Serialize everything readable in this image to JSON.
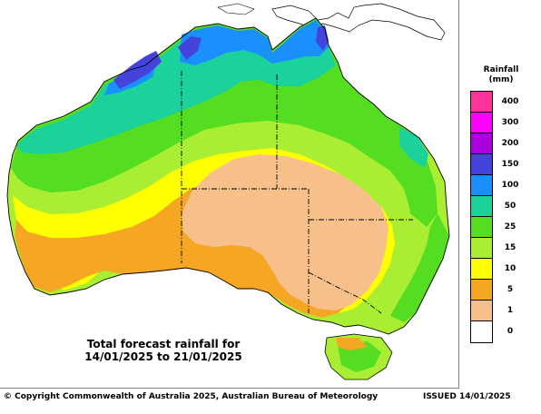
{
  "map": {
    "title_line1": "Total forecast rainfall for",
    "title_line2": "14/01/2025 to 21/01/2025",
    "background_sea": "#ffffff"
  },
  "legend": {
    "title_line1": "Rainfall",
    "title_line2": "(mm)",
    "bands": [
      {
        "label": "400",
        "color": "#ff3399"
      },
      {
        "label": "300",
        "color": "#ff00ff"
      },
      {
        "label": "200",
        "color": "#aa00dd"
      },
      {
        "label": "150",
        "color": "#4444dd"
      },
      {
        "label": "100",
        "color": "#1a90ff"
      },
      {
        "label": "50",
        "color": "#1ad29a"
      },
      {
        "label": "25",
        "color": "#55dd22"
      },
      {
        "label": "15",
        "color": "#aaee33"
      },
      {
        "label": "10",
        "color": "#ffff00"
      },
      {
        "label": "5",
        "color": "#f5a623"
      },
      {
        "label": "1",
        "color": "#f7c08a"
      },
      {
        "label": "0",
        "color": "#ffffff"
      }
    ]
  },
  "footer": {
    "copyright": "© Copyright Commonwealth of Australia 2025, Australian Bureau of Meteorology",
    "issued": "ISSUED 14/01/2025"
  }
}
